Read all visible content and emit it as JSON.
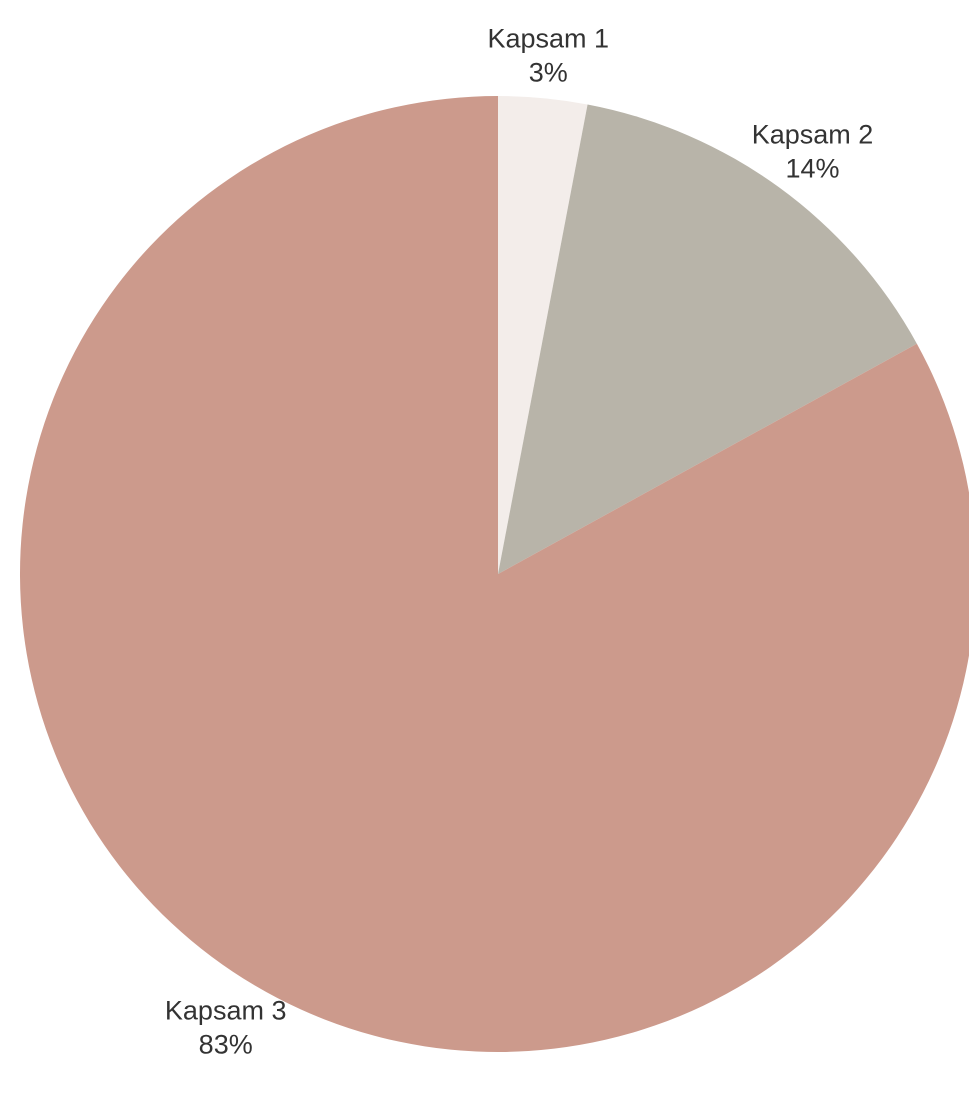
{
  "chart_data": {
    "type": "pie",
    "categories": [
      "Kapsam 1",
      "Kapsam 2",
      "Kapsam 3"
    ],
    "values": [
      3,
      14,
      83
    ],
    "value_labels": [
      "3%",
      "14%",
      "83%"
    ],
    "unit": "%",
    "start_angle": "12 o'clock",
    "direction": "clockwise",
    "legend": "none",
    "colors": [
      "#f3edea",
      "#b8b4a9",
      "#cc9a8c"
    ]
  }
}
